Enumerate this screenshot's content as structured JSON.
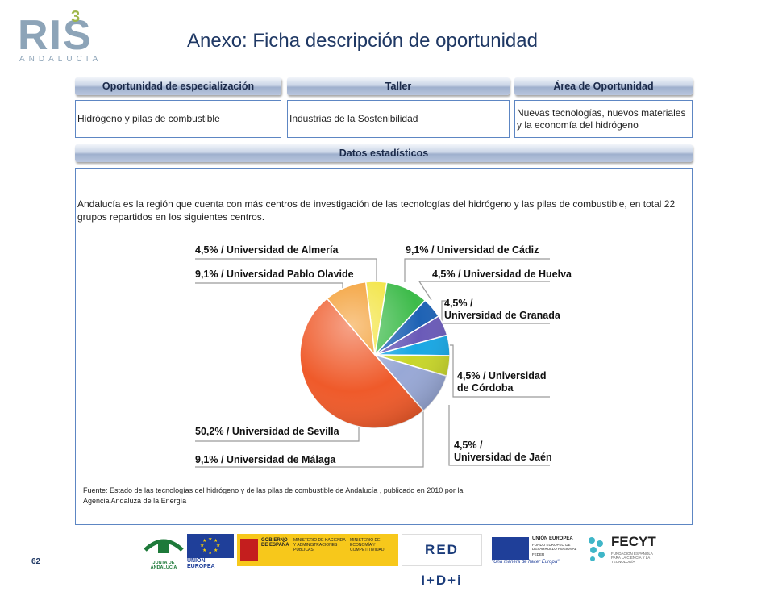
{
  "brand": {
    "logo_letters": "RIS",
    "logo_superscript": "3",
    "logo_sub": "ANDALUCIA"
  },
  "page_title": "Anexo: Ficha descripción de oportunidad",
  "headers": {
    "oportunidad": "Oportunidad de especialización",
    "taller": "Taller",
    "area": "Área de Oportunidad",
    "datos": "Datos estadísticos"
  },
  "values": {
    "oportunidad": "Hidrógeno y pilas de combustible",
    "taller": "Industrias de la Sostenibilidad",
    "area": "Nuevas tecnologías, nuevos materiales y la economía del hidrógeno"
  },
  "paragraph": "Andalucía es la región que cuenta con más centros de investigación de las tecnologías del hidrógeno y las pilas de combustible, en total 22 grupos repartidos en los siguientes centros.",
  "source_note": "Fuente: Estado de las tecnologías del hidrógeno y de las pilas de combustible de Andalucía , publicado en 2010 por la Agencia Andaluza de la Energía",
  "page_number": "62",
  "chart_data": {
    "type": "pie",
    "slices": [
      {
        "label": "Universidad de Almería",
        "value": 4.5,
        "display": "4,5% / Universidad de Almería",
        "color": "#f2e33b"
      },
      {
        "label": "Universidad de Cádiz",
        "value": 9.1,
        "display": "9,1% / Universidad de Cádiz",
        "color": "#3dbb4a"
      },
      {
        "label": "Universidad de Huelva",
        "value": 4.5,
        "display": "4,5% / Universidad de Huelva",
        "color": "#1e62b4"
      },
      {
        "label": "Universidad de Granada",
        "value": 4.5,
        "display": "4,5% / Universidad de Granada",
        "color": "#6a5ab8"
      },
      {
        "label": "Universidad de Córdoba",
        "value": 4.5,
        "display": "4,5% / Universidad de Córdoba",
        "color": "#18a7e4"
      },
      {
        "label": "Universidad de Jaén",
        "value": 4.5,
        "display": "4,5% / Universidad de Jaén",
        "color": "#c8d62a"
      },
      {
        "label": "Universidad de Málaga",
        "value": 9.1,
        "display": "9,1% / Universidad de Málaga",
        "color": "#98a8d6"
      },
      {
        "label": "Universidad de Sevilla",
        "value": 50.2,
        "display": "50,2% / Universidad de Sevilla",
        "color": "#ef5a2a"
      },
      {
        "label": "Universidad Pablo Olavide",
        "value": 9.1,
        "display": "9,1% / Universidad Pablo Olavide",
        "color": "#f39a2b"
      }
    ],
    "labels": {
      "almeria": {
        "pct": "4,5% /",
        "name": "Universidad de Almería"
      },
      "olavide": {
        "pct": "9,1% /",
        "name": "Universidad Pablo Olavide"
      },
      "cadiz": {
        "pct": "9,1% /",
        "name": "Universidad de Cádiz"
      },
      "huelva": {
        "pct": "4,5% /",
        "name": "Universidad de Huelva"
      },
      "granada": {
        "pct": "4,5% /",
        "name": "Universidad de Granada"
      },
      "cordoba": {
        "pct": "4,5% /",
        "name1": "Universidad",
        "name2": "de Córdoba"
      },
      "jaen": {
        "pct": "4,5% /",
        "name": "Universidad de Jaén"
      },
      "sevilla": {
        "pct": "50,2% /",
        "name": "Universidad de Sevilla"
      },
      "malaga": {
        "pct": "9,1% /",
        "name": "Universidad de Málaga"
      }
    }
  },
  "footer_logos": {
    "junta": "JUNTA DE ANDALUCIA",
    "ue": "UNIÓN EUROPEA",
    "gobierno": "GOBIERNO DE ESPAÑA",
    "min_hacienda": "MINISTERIO DE HACIENDA Y ADMINISTRACIONES PÚBLICAS",
    "min_economia": "MINISTERIO DE ECONOMÍA Y COMPETITIVIDAD",
    "red": "RED I+D+i",
    "ue2_title": "UNIÓN EUROPEA",
    "ue2_fund": "FONDO EUROPEO DE DESARROLLO REGIONAL",
    "ue2_feder": "FEDER",
    "ue2_slogan": "\"Una manera de hacer Europa\"",
    "fecyt": "FECYT",
    "fecyt_sub": "FUNDACIÓN ESPAÑOLA PARA LA CIENCIA Y LA TECNOLOGÍA"
  }
}
